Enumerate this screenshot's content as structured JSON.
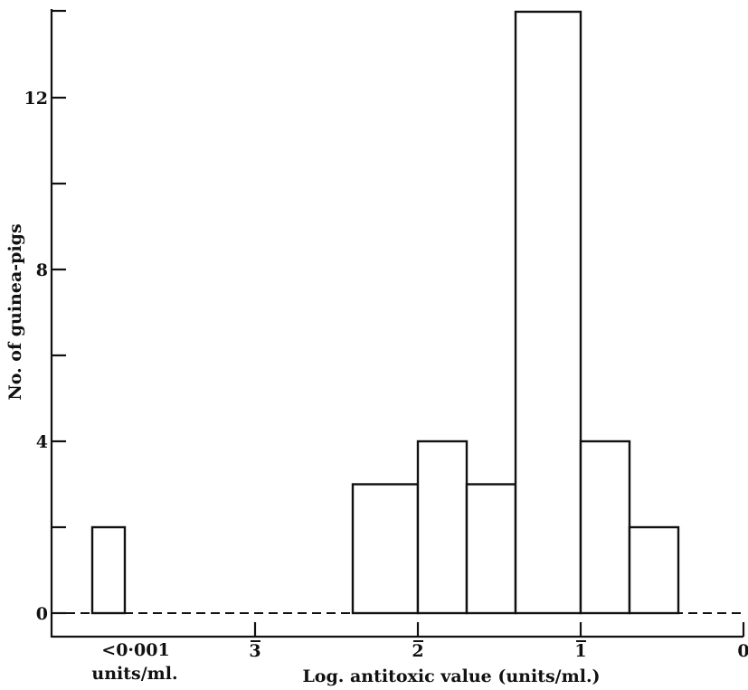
{
  "chart_data": {
    "type": "bar",
    "title": "",
    "xlabel": "Log. antitoxic value (units/ml.)",
    "ylabel": "No. of guinea-pigs",
    "ylim": [
      0,
      14
    ],
    "xlim": [
      -4.25,
      0
    ],
    "y_ticks_major": [
      {
        "value": 0,
        "label": "0"
      },
      {
        "value": 4,
        "label": "4"
      },
      {
        "value": 8,
        "label": "8"
      },
      {
        "value": 12,
        "label": "12"
      }
    ],
    "y_ticks_minor": [
      2,
      6,
      10
    ],
    "x_ticks": [
      {
        "value": -3,
        "digit": "3",
        "bar_over": true
      },
      {
        "value": -2,
        "digit": "2",
        "bar_over": true
      },
      {
        "value": -1,
        "digit": "1",
        "bar_over": true
      },
      {
        "value": 0,
        "digit": "0",
        "bar_over": false
      }
    ],
    "below_detection_label": [
      "<0·001",
      "units/ml."
    ],
    "bins": [
      {
        "x_start": -4.0,
        "x_end": -3.8,
        "count": 2,
        "group": "<0·001 units/ml."
      },
      {
        "x_start": -2.4,
        "x_end": -2.0,
        "count": 3
      },
      {
        "x_start": -2.0,
        "x_end": -1.7,
        "count": 4
      },
      {
        "x_start": -1.7,
        "x_end": -1.4,
        "count": 3
      },
      {
        "x_start": -1.4,
        "x_end": -1.0,
        "count": 14
      },
      {
        "x_start": -1.0,
        "x_end": -0.7,
        "count": 4
      },
      {
        "x_start": -0.7,
        "x_end": -0.4,
        "count": 2
      }
    ],
    "zero_line": "dashed",
    "grid": false
  }
}
